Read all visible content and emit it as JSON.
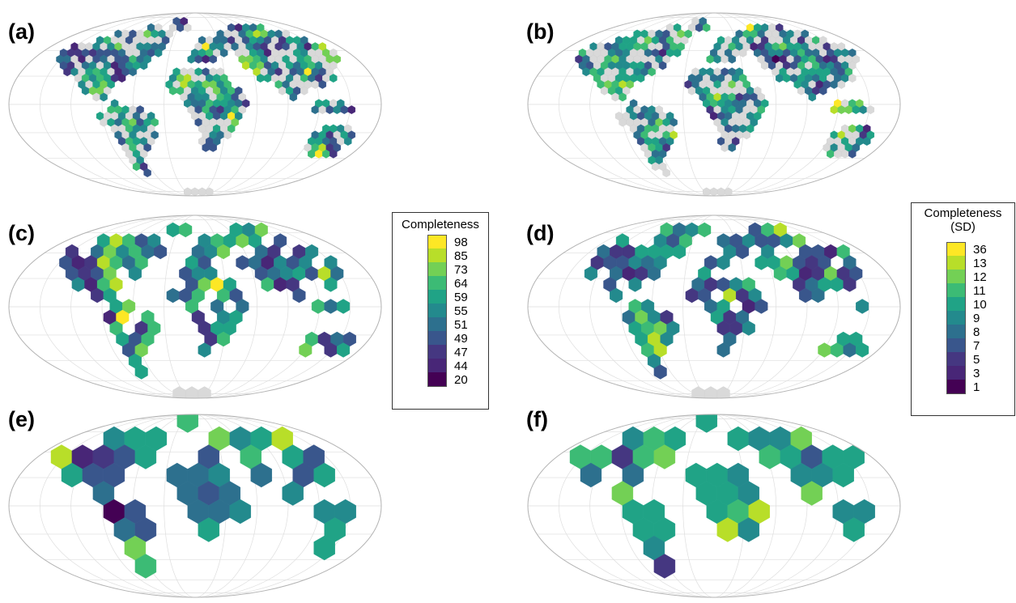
{
  "panels": [
    {
      "label": "(a)",
      "metric": "completeness",
      "resolution": "fine",
      "seed": 11
    },
    {
      "label": "(b)",
      "metric": "sd",
      "resolution": "fine",
      "seed": 23
    },
    {
      "label": "(c)",
      "metric": "completeness",
      "resolution": "medium",
      "seed": 37
    },
    {
      "label": "(d)",
      "metric": "sd",
      "resolution": "medium",
      "seed": 41
    },
    {
      "label": "(e)",
      "metric": "completeness",
      "resolution": "coarse",
      "seed": 53
    },
    {
      "label": "(f)",
      "metric": "sd",
      "resolution": "coarse",
      "seed": 67
    }
  ],
  "legends": {
    "completeness": {
      "title": "Completeness",
      "title_line2": "",
      "breaks": [
        "98",
        "85",
        "73",
        "64",
        "59",
        "55",
        "51",
        "49",
        "47",
        "44",
        "20"
      ],
      "colors": [
        "#fde725",
        "#b8de29",
        "#73d055",
        "#3cbb75",
        "#20a386",
        "#238a8d",
        "#2d708e",
        "#39568c",
        "#453781",
        "#482677",
        "#440154"
      ]
    },
    "sd": {
      "title": "Completeness",
      "title_line2": "(SD)",
      "breaks": [
        "36",
        "13",
        "12",
        "11",
        "10",
        "9",
        "8",
        "7",
        "5",
        "3",
        "1"
      ],
      "colors": [
        "#fde725",
        "#b8de29",
        "#73d055",
        "#3cbb75",
        "#20a386",
        "#238a8d",
        "#2d708e",
        "#39568c",
        "#453781",
        "#482677",
        "#440154"
      ]
    }
  },
  "colors": {
    "ocean": "#ffffff",
    "outline": "#b3b3b3",
    "graticule": "#dedede",
    "empty_land": "#d9d9d9",
    "text": "#000000"
  }
}
